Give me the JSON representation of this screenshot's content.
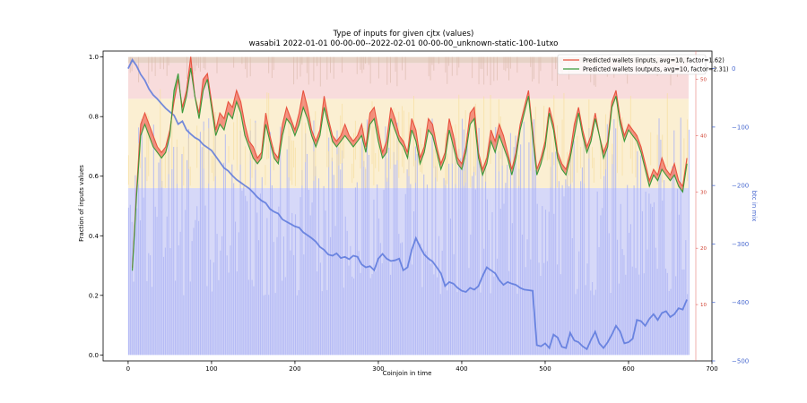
{
  "chart_data": {
    "type": "line",
    "title": "Type of inputs for given cjtx (values)",
    "subtitle": "wasabi1 2022-01-01 00-00-00--2022-02-01 00-00-00_unknown-static-100-1utxo",
    "xlabel": "Coinjoin in time",
    "ylabel": "Fraction of inputs values",
    "y2label": "btc in mix",
    "xlim": [
      -30,
      700
    ],
    "ylim": [
      -0.02,
      1.02
    ],
    "y2lim": [
      -500,
      30
    ],
    "y3lim": [
      0,
      55
    ],
    "xticks": [
      0,
      100,
      200,
      300,
      400,
      500,
      600,
      700
    ],
    "yticks": [
      0.0,
      0.2,
      0.4,
      0.6,
      0.8,
      1.0
    ],
    "y2ticks": [
      -500,
      -400,
      -300,
      -200,
      -100,
      0
    ],
    "y3ticks": [
      10,
      20,
      30,
      40,
      50
    ],
    "grid": false,
    "legend": {
      "placement": "top-right",
      "entries": [
        {
          "label": "Predicted wallets (inputs, avg=10, factor=1.62)",
          "color": "#e8533f"
        },
        {
          "label": "Predicted wallets (outputs, avg=10, factor=2.31)",
          "color": "#3a9a3a"
        }
      ]
    },
    "background_bands": [
      {
        "y0": 0.0,
        "y1": 0.56,
        "color": "#d6d8f8"
      },
      {
        "y0": 0.56,
        "y1": 0.86,
        "color": "#fbefd2"
      },
      {
        "y0": 0.86,
        "y1": 0.98,
        "color": "#f8dcdc"
      },
      {
        "y0": 0.98,
        "y1": 1.0,
        "color": "#e6d2c6"
      }
    ],
    "series": [
      {
        "name": "Predicted wallets (inputs, avg=10, factor=1.62)",
        "axis": "y3",
        "color": "#e8533f",
        "x": [
          5,
          10,
          15,
          20,
          25,
          30,
          35,
          40,
          45,
          50,
          55,
          60,
          65,
          70,
          75,
          80,
          85,
          90,
          95,
          100,
          105,
          110,
          115,
          120,
          125,
          130,
          135,
          140,
          145,
          150,
          155,
          160,
          165,
          170,
          175,
          180,
          185,
          190,
          195,
          200,
          205,
          210,
          215,
          220,
          225,
          230,
          235,
          240,
          245,
          250,
          255,
          260,
          265,
          270,
          275,
          280,
          285,
          290,
          295,
          300,
          305,
          310,
          315,
          320,
          325,
          330,
          335,
          340,
          345,
          350,
          355,
          360,
          365,
          370,
          375,
          380,
          385,
          390,
          395,
          400,
          405,
          410,
          415,
          420,
          425,
          430,
          435,
          440,
          445,
          450,
          455,
          460,
          465,
          470,
          475,
          480,
          485,
          490,
          495,
          500,
          505,
          510,
          515,
          520,
          525,
          530,
          535,
          540,
          545,
          550,
          555,
          560,
          565,
          570,
          575,
          580,
          585,
          590,
          595,
          600,
          605,
          610,
          615,
          620,
          625,
          630,
          635,
          640,
          645,
          650,
          655,
          660,
          665,
          670
        ],
        "values": [
          16.5,
          30,
          42,
          44,
          42,
          40,
          38,
          37,
          38,
          41,
          46,
          50,
          45,
          48,
          54,
          47,
          44,
          50,
          51,
          46,
          41,
          44,
          43,
          46,
          45,
          48,
          46,
          42,
          39,
          38,
          36,
          37,
          44,
          40,
          37,
          36,
          42,
          45,
          43,
          41,
          44,
          48,
          45,
          41,
          39,
          41,
          47,
          43,
          40,
          39,
          40,
          42,
          40,
          39,
          40,
          42,
          38,
          44,
          45,
          41,
          37,
          39,
          45,
          43,
          40,
          39,
          37,
          43,
          41,
          36,
          38,
          43,
          42,
          38,
          35,
          37,
          43,
          40,
          36,
          35,
          38,
          44,
          45,
          37,
          34,
          36,
          41,
          39,
          42,
          40,
          37,
          34,
          37,
          42,
          45,
          48,
          41,
          34,
          36,
          39,
          45,
          42,
          37,
          35,
          34,
          37,
          42,
          45,
          41,
          38,
          40,
          44,
          40,
          37,
          39,
          46,
          48,
          43,
          40,
          42,
          41,
          40,
          38,
          35,
          32,
          34,
          33,
          36,
          34,
          33,
          35,
          32,
          31,
          36
        ]
      },
      {
        "name": "Predicted wallets (outputs, avg=10, factor=2.31)",
        "axis": "y3",
        "color": "#3a9a3a",
        "x": [
          5,
          10,
          15,
          20,
          25,
          30,
          35,
          40,
          45,
          50,
          55,
          60,
          65,
          70,
          75,
          80,
          85,
          90,
          95,
          100,
          105,
          110,
          115,
          120,
          125,
          130,
          135,
          140,
          145,
          150,
          155,
          160,
          165,
          170,
          175,
          180,
          185,
          190,
          195,
          200,
          205,
          210,
          215,
          220,
          225,
          230,
          235,
          240,
          245,
          250,
          255,
          260,
          265,
          270,
          275,
          280,
          285,
          290,
          295,
          300,
          305,
          310,
          315,
          320,
          325,
          330,
          335,
          340,
          345,
          350,
          355,
          360,
          365,
          370,
          375,
          380,
          385,
          390,
          395,
          400,
          405,
          410,
          415,
          420,
          425,
          430,
          435,
          440,
          445,
          450,
          455,
          460,
          465,
          470,
          475,
          480,
          485,
          490,
          495,
          500,
          505,
          510,
          515,
          520,
          525,
          530,
          535,
          540,
          545,
          550,
          555,
          560,
          565,
          570,
          575,
          580,
          585,
          590,
          595,
          600,
          605,
          610,
          615,
          620,
          625,
          630,
          635,
          640,
          645,
          650,
          655,
          660,
          665,
          670
        ],
        "values": [
          16,
          29,
          40,
          42,
          40,
          38,
          37,
          36,
          37,
          40,
          48,
          51,
          44,
          47,
          52,
          47,
          43,
          48,
          50,
          45,
          40,
          42,
          41,
          44,
          43,
          46,
          44,
          40,
          38,
          36,
          35,
          36,
          42,
          39,
          36,
          35,
          40,
          43,
          42,
          40,
          42,
          45,
          43,
          40,
          38,
          40,
          45,
          42,
          39,
          38,
          39,
          40,
          39,
          38,
          39,
          40,
          37,
          42,
          43,
          39,
          36,
          37,
          43,
          41,
          39,
          38,
          36,
          41,
          39,
          35,
          37,
          41,
          40,
          37,
          34,
          36,
          41,
          38,
          35,
          34,
          37,
          42,
          43,
          36,
          33,
          35,
          39,
          37,
          40,
          38,
          36,
          33,
          36,
          41,
          44,
          47,
          40,
          33,
          35,
          38,
          44,
          41,
          36,
          34,
          33,
          36,
          40,
          44,
          40,
          37,
          39,
          43,
          40,
          36,
          38,
          45,
          47,
          42,
          39,
          41,
          40,
          39,
          37,
          34,
          31,
          33,
          32,
          34,
          33,
          32,
          33,
          31,
          30,
          35
        ]
      },
      {
        "name": "btc in mix",
        "axis": "y2",
        "color": "#5a78dc",
        "x": [
          0,
          5,
          10,
          15,
          20,
          25,
          30,
          35,
          40,
          45,
          50,
          55,
          60,
          65,
          70,
          75,
          80,
          85,
          90,
          95,
          100,
          105,
          110,
          115,
          120,
          125,
          130,
          135,
          140,
          145,
          150,
          155,
          160,
          165,
          170,
          175,
          180,
          185,
          190,
          195,
          200,
          205,
          210,
          215,
          220,
          225,
          230,
          235,
          240,
          245,
          250,
          255,
          260,
          265,
          270,
          275,
          280,
          285,
          290,
          295,
          300,
          305,
          310,
          315,
          320,
          325,
          330,
          335,
          340,
          345,
          350,
          355,
          360,
          365,
          370,
          375,
          380,
          385,
          390,
          395,
          400,
          405,
          410,
          415,
          420,
          425,
          430,
          435,
          440,
          445,
          450,
          455,
          460,
          465,
          470,
          475,
          480,
          485,
          490,
          495,
          500,
          505,
          510,
          515,
          520,
          525,
          530,
          535,
          540,
          545,
          550,
          555,
          560,
          565,
          570,
          575,
          580,
          585,
          590,
          595,
          600,
          605,
          610,
          615,
          620,
          625,
          630,
          635,
          640,
          645,
          650,
          655,
          660,
          665,
          670
        ],
        "values": [
          0,
          15,
          5,
          -10,
          -20,
          -35,
          -45,
          -52,
          -60,
          -68,
          -74,
          -80,
          -95,
          -90,
          -105,
          -112,
          -118,
          -122,
          -130,
          -135,
          -140,
          -150,
          -160,
          -170,
          -175,
          -183,
          -190,
          -195,
          -200,
          -205,
          -212,
          -220,
          -226,
          -230,
          -240,
          -245,
          -248,
          -258,
          -262,
          -266,
          -270,
          -272,
          -280,
          -285,
          -290,
          -296,
          -305,
          -310,
          -318,
          -320,
          -316,
          -324,
          -322,
          -326,
          -320,
          -322,
          -335,
          -340,
          -338,
          -345,
          -325,
          -317,
          -325,
          -329,
          -328,
          -325,
          -345,
          -340,
          -310,
          -290,
          -305,
          -318,
          -325,
          -330,
          -340,
          -350,
          -372,
          -365,
          -368,
          -375,
          -380,
          -382,
          -375,
          -378,
          -372,
          -355,
          -340,
          -345,
          -350,
          -362,
          -370,
          -365,
          -368,
          -370,
          -375,
          -378,
          -379,
          -380,
          -473,
          -475,
          -470,
          -478,
          -455,
          -460,
          -476,
          -478,
          -452,
          -465,
          -468,
          -475,
          -480,
          -464,
          -450,
          -470,
          -478,
          -468,
          -455,
          -440,
          -450,
          -470,
          -468,
          -462,
          -430,
          -432,
          -440,
          -428,
          -420,
          -430,
          -418,
          -415,
          -425,
          -420,
          -410,
          -412,
          -395
        ]
      }
    ]
  }
}
